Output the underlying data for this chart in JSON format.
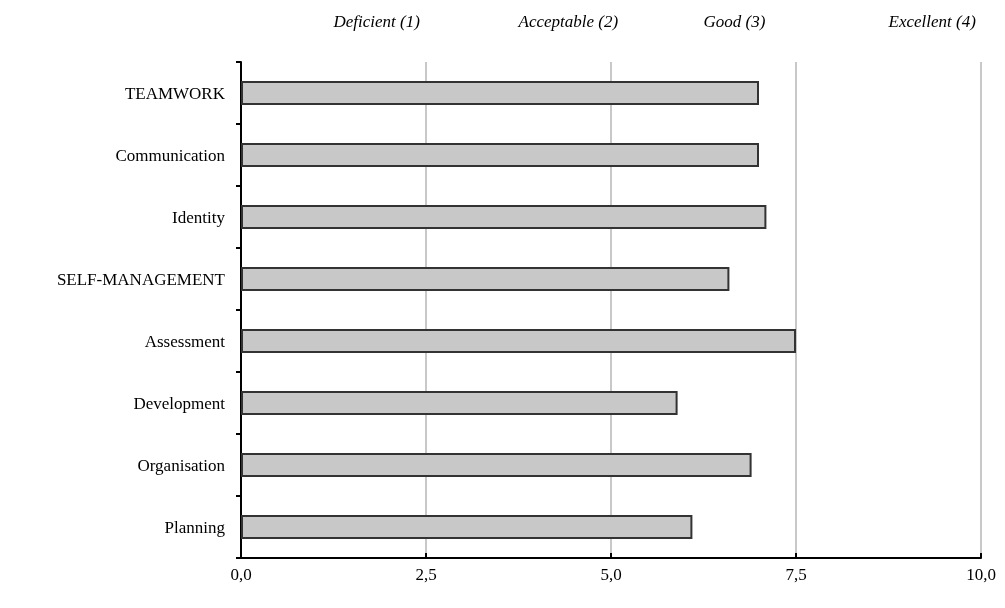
{
  "chart_data": {
    "type": "bar",
    "orientation": "horizontal",
    "categories": [
      "TEAMWORK",
      "Communication",
      "Identity",
      "SELF-MANAGEMENT",
      "Assessment",
      "Development",
      "Organisation",
      "Planning"
    ],
    "values": [
      7.0,
      7.0,
      7.1,
      6.6,
      7.5,
      5.9,
      6.9,
      6.1
    ],
    "color": "#c8c8c8",
    "xlim": [
      0,
      10
    ],
    "xticks": [
      {
        "value": 0,
        "label": "0,0"
      },
      {
        "value": 2.5,
        "label": "2,5"
      },
      {
        "value": 5,
        "label": "5,0"
      },
      {
        "value": 7.5,
        "label": "7,5"
      },
      {
        "value": 10,
        "label": "10,0"
      }
    ],
    "grid": "x",
    "annotations": [
      "Deficient (1)",
      "Acceptable (2)",
      "Good (3)",
      "Excellent (4)"
    ]
  }
}
